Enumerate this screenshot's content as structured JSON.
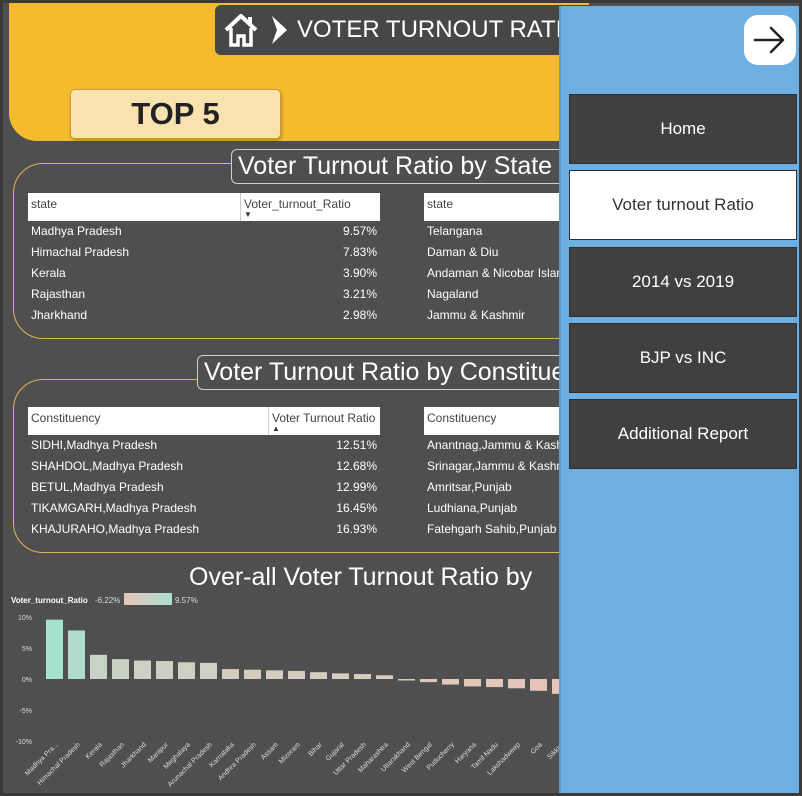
{
  "header": {
    "title": "VOTER TURNOUT RATIO",
    "top5_label": "TOP 5"
  },
  "state_panel": {
    "title": "Voter Turnout Ratio by State",
    "left_table": {
      "col1": "state",
      "col2": "Voter_turnout_Ratio",
      "rows": [
        {
          "name": "Madhya Pradesh",
          "value": "9.57%"
        },
        {
          "name": "Himachal Pradesh",
          "value": "7.83%"
        },
        {
          "name": "Kerala",
          "value": "3.90%"
        },
        {
          "name": "Rajasthan",
          "value": "3.21%"
        },
        {
          "name": "Jharkhand",
          "value": "2.98%"
        }
      ]
    },
    "right_table": {
      "col1": "state",
      "rows": [
        {
          "name": "Telangana"
        },
        {
          "name": "Daman & Diu"
        },
        {
          "name": "Andaman & Nicobar Islan"
        },
        {
          "name": "Nagaland"
        },
        {
          "name": "Jammu & Kashmir"
        }
      ]
    }
  },
  "constituency_panel": {
    "title": "Voter Turnout Ratio by Constituency",
    "left_table": {
      "col1": "Constituency",
      "col2": "Voter Turnout Ratio",
      "rows": [
        {
          "name": "SIDHI,Madhya Pradesh",
          "value": "12.51%"
        },
        {
          "name": "SHAHDOL,Madhya Pradesh",
          "value": "12.68%"
        },
        {
          "name": "BETUL,Madhya Pradesh",
          "value": "12.99%"
        },
        {
          "name": "TIKAMGARH,Madhya Pradesh",
          "value": "16.45%"
        },
        {
          "name": "KHAJURAHO,Madhya Pradesh",
          "value": "16.93%"
        }
      ]
    },
    "right_table": {
      "col1": "Constituency",
      "rows": [
        {
          "name": "Anantnag,Jammu & Kashmir"
        },
        {
          "name": "Srinagar,Jammu & Kashmir"
        },
        {
          "name": "Amritsar,Punjab"
        },
        {
          "name": "Ludhiana,Punjab"
        },
        {
          "name": "Fatehgarh Sahib,Punjab"
        }
      ]
    }
  },
  "chart_data": {
    "type": "bar",
    "title": "Over-all Voter Turnout Ratio by",
    "legend": {
      "label": "Voter_turnout_Ratio",
      "min_label": "-6.22%",
      "max_label": "9.57%"
    },
    "ylim": [
      -10,
      12
    ],
    "yticks": [
      "10%",
      "5%",
      "0%",
      "-5%",
      "-10%"
    ],
    "ytick_values": [
      10,
      5,
      0,
      -5,
      -10
    ],
    "categories": [
      "Madhya Pra...",
      "Himachal Pradesh",
      "Kerala",
      "Rajasthan",
      "Jharkhand",
      "Manipur",
      "Meghalaya",
      "Arunachal Pradesh",
      "Karnataka",
      "Andhra Pradesh",
      "Assam",
      "Mizoram",
      "Bihar",
      "Gujarat",
      "Uttar Pradesh",
      "Maharashtra",
      "Uttarakhand",
      "West Bengal",
      "Puducherry",
      "Haryana",
      "Tamil Nadu",
      "Lakshadweep",
      "Goa",
      "Sikkim"
    ],
    "values": [
      9.57,
      7.83,
      3.9,
      3.21,
      2.98,
      2.9,
      2.7,
      2.6,
      1.6,
      1.5,
      1.4,
      1.3,
      1.1,
      0.9,
      0.8,
      0.6,
      -0.1,
      -0.5,
      -0.9,
      -1.2,
      -1.3,
      -1.5,
      -1.9,
      -2.4
    ],
    "color_low": "#e8c4b8",
    "color_high": "#a8e0d0"
  },
  "nav": {
    "items": [
      {
        "label": "Home"
      },
      {
        "label": "Voter turnout Ratio"
      },
      {
        "label": "2014 vs 2019"
      },
      {
        "label": "BJP vs INC"
      },
      {
        "label": "Additional Report"
      }
    ]
  }
}
